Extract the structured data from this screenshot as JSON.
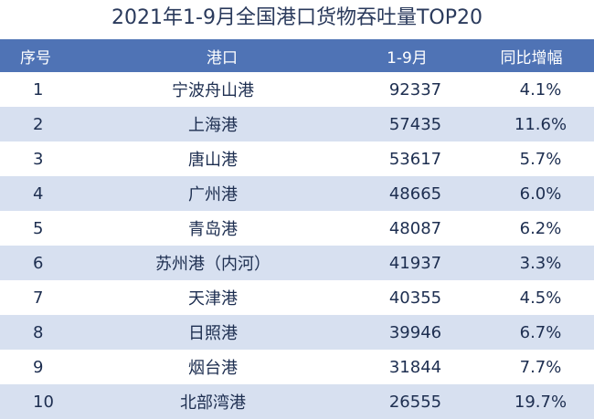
{
  "chart_data": {
    "type": "table",
    "title": "2021年1-9月全国港口货物吞吐量TOP20",
    "columns": [
      "序号",
      "港口",
      "1-9月",
      "同比增幅"
    ],
    "rows": [
      {
        "rank": "1",
        "port": "宁波舟山港",
        "ytd": "92337",
        "yoy": "4.1%"
      },
      {
        "rank": "2",
        "port": "上海港",
        "ytd": "57435",
        "yoy": "11.6%"
      },
      {
        "rank": "3",
        "port": "唐山港",
        "ytd": "53617",
        "yoy": "5.7%"
      },
      {
        "rank": "4",
        "port": "广州港",
        "ytd": "48665",
        "yoy": "6.0%"
      },
      {
        "rank": "5",
        "port": "青岛港",
        "ytd": "48087",
        "yoy": "6.2%"
      },
      {
        "rank": "6",
        "port": "苏州港（内河）",
        "ytd": "41937",
        "yoy": "3.3%"
      },
      {
        "rank": "7",
        "port": "天津港",
        "ytd": "40355",
        "yoy": "4.5%"
      },
      {
        "rank": "8",
        "port": "日照港",
        "ytd": "39946",
        "yoy": "6.7%"
      },
      {
        "rank": "9",
        "port": "烟台港",
        "ytd": "31844",
        "yoy": "7.7%"
      },
      {
        "rank": "10",
        "port": "北部湾港",
        "ytd": "26555",
        "yoy": "19.7%"
      }
    ]
  },
  "colors": {
    "header_bg": "#4f73b5",
    "alt_row_bg": "#d7e0f0",
    "text": "#1d2e50"
  }
}
